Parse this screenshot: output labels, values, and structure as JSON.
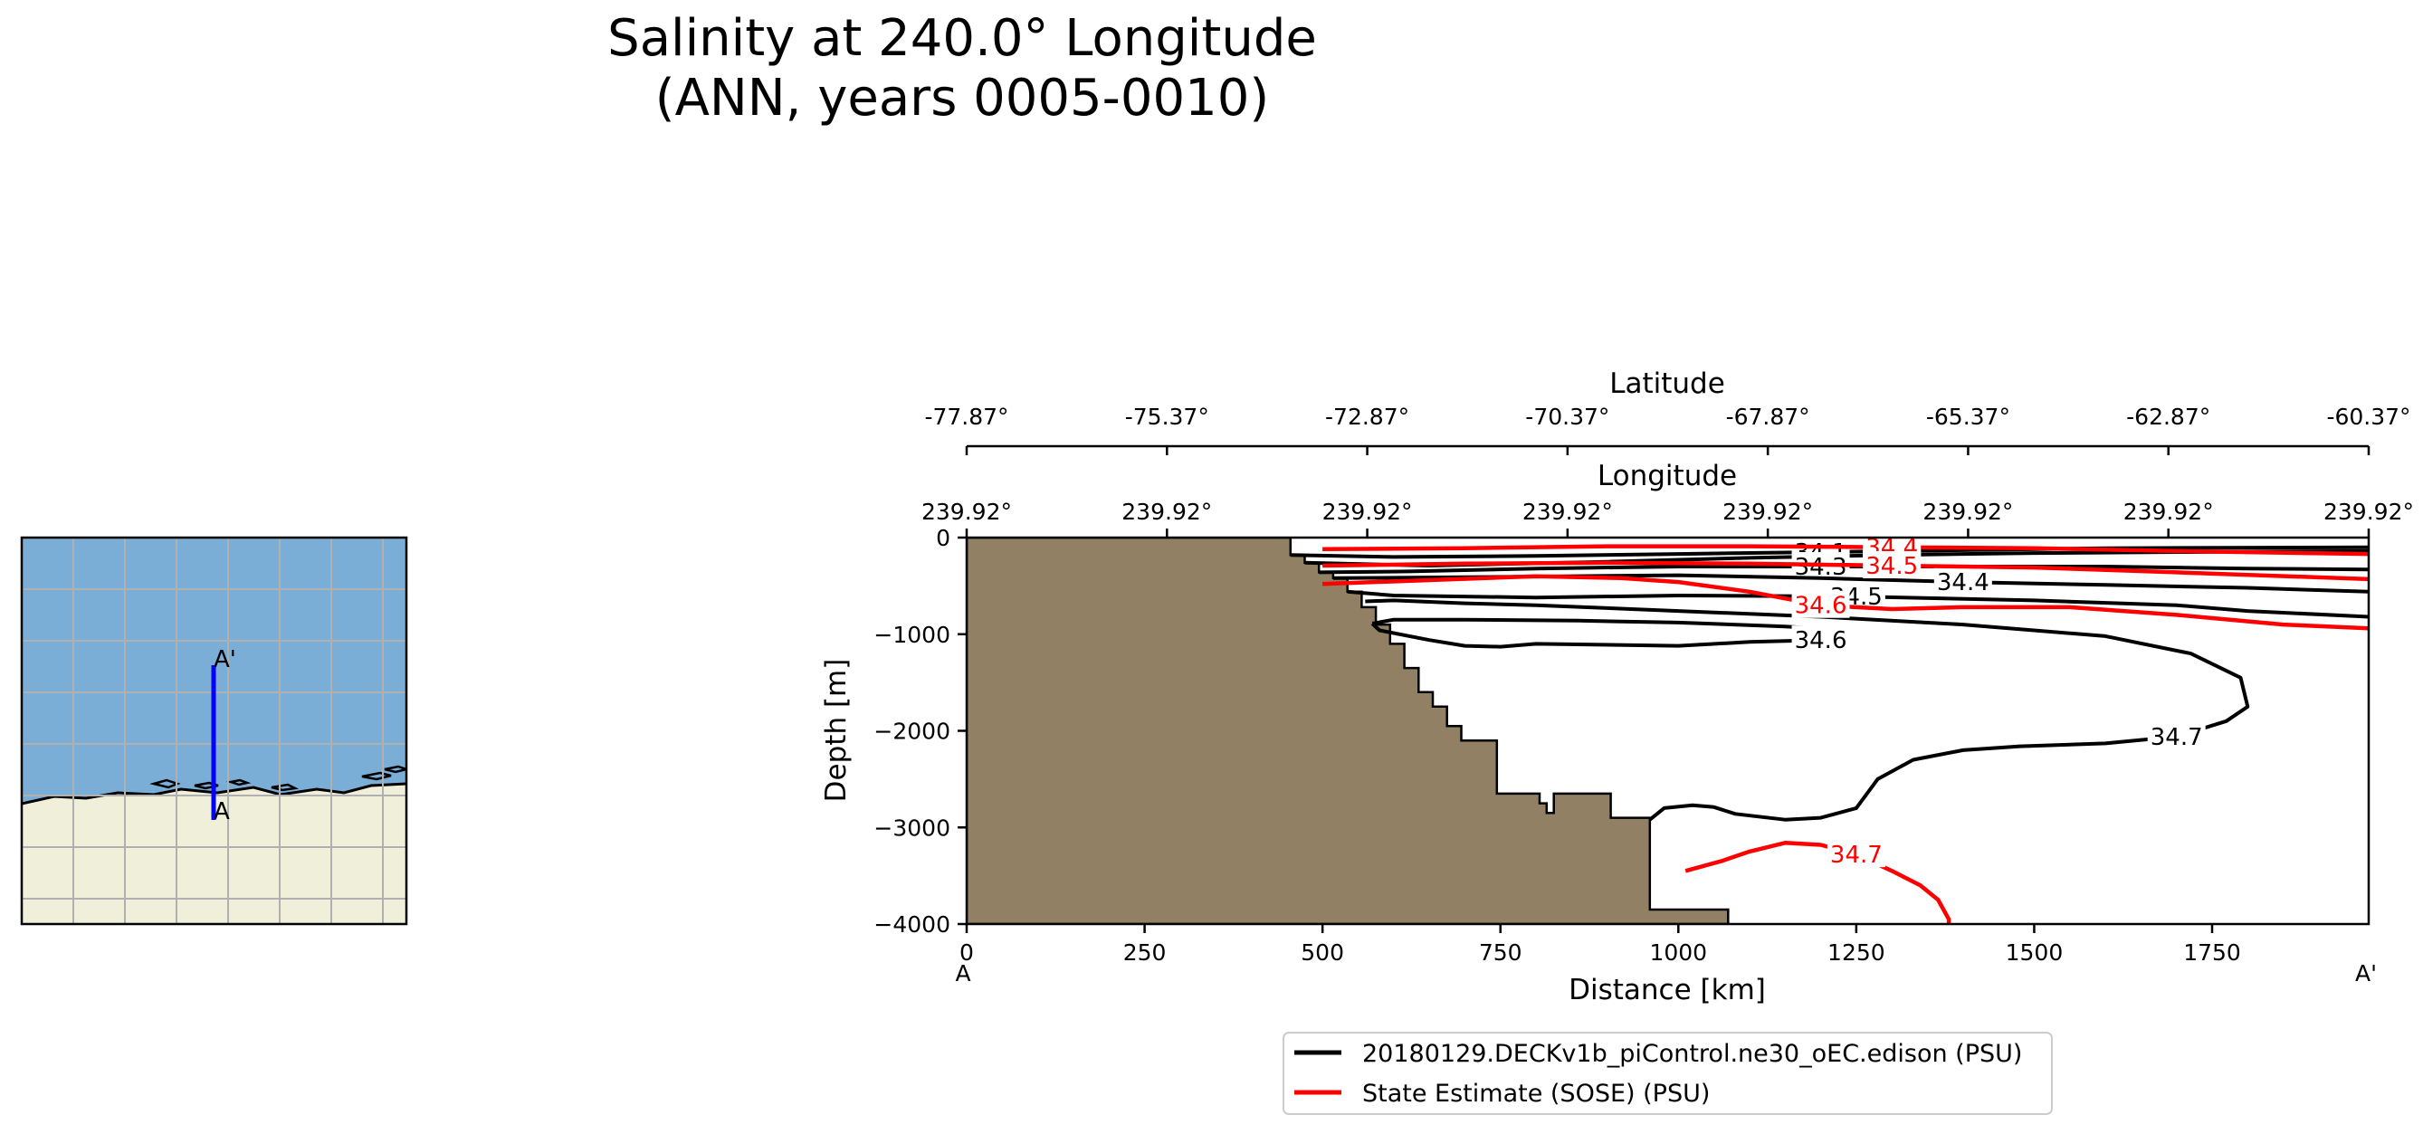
{
  "title": {
    "line1": "Salinity at 240.0° Longitude",
    "line2": "(ANN, years 0005-0010)"
  },
  "inset_map": {
    "start_label": "A",
    "end_label": "A'",
    "ocean_color": "#7aaed6",
    "land_color": "#efefda",
    "transect_color": "#0000ff"
  },
  "colors": {
    "model": "#000000",
    "obs": "#ff0000",
    "bathymetry": "#918064"
  },
  "chart_data": {
    "type": "line",
    "subtype": "vertical section with contour lines",
    "xlabel": "Distance [km]",
    "ylabel": "Depth [m]",
    "xlim": [
      0,
      1970
    ],
    "ylim": [
      -4000,
      0
    ],
    "x_ticks": [
      "0",
      "250",
      "500",
      "750",
      "1000",
      "1250",
      "1500",
      "1750"
    ],
    "y_ticks": [
      "0",
      "−1000",
      "−2000",
      "−3000",
      "−4000"
    ],
    "x_end_labels": {
      "start": "A",
      "end": "A'"
    },
    "latitude_axis": {
      "label": "Latitude",
      "ticks": [
        "-77.87°",
        "-75.37°",
        "-72.87°",
        "-70.37°",
        "-67.87°",
        "-65.37°",
        "-62.87°",
        "-60.37°"
      ]
    },
    "longitude_axis": {
      "label": "Longitude",
      "ticks": [
        "239.92°",
        "239.92°",
        "239.92°",
        "239.92°",
        "239.92°",
        "239.92°",
        "239.92°",
        "239.92°"
      ]
    },
    "legend_location": "below plot",
    "series": [
      {
        "name": "20180129.DECKv1b_piControl.ne30_oEC.edison (PSU)",
        "color": "#000000",
        "contours": [
          {
            "label": "34.1",
            "points": [
              [
                455,
                -180
              ],
              [
                600,
                -200
              ],
              [
                800,
                -190
              ],
              [
                1000,
                -170
              ],
              [
                1200,
                -150
              ],
              [
                1400,
                -130
              ],
              [
                1600,
                -110
              ],
              [
                1970,
                -100
              ]
            ]
          },
          {
            "label": "34.2",
            "points": [
              [
                475,
                -260
              ],
              [
                650,
                -290
              ],
              [
                900,
                -250
              ],
              [
                1100,
                -210
              ],
              [
                1300,
                -180
              ],
              [
                1500,
                -160
              ],
              [
                1700,
                -150
              ],
              [
                1970,
                -140
              ]
            ]
          },
          {
            "label": "34.3",
            "points": [
              [
                495,
                -360
              ],
              [
                620,
                -350
              ],
              [
                800,
                -320
              ],
              [
                1000,
                -300
              ],
              [
                1200,
                -300
              ],
              [
                1400,
                -300
              ],
              [
                1600,
                -300
              ],
              [
                1800,
                -320
              ],
              [
                1970,
                -330
              ]
            ]
          },
          {
            "label": "34.4",
            "points": [
              [
                515,
                -420
              ],
              [
                700,
                -410
              ],
              [
                1000,
                -390
              ],
              [
                1200,
                -420
              ],
              [
                1400,
                -460
              ],
              [
                1600,
                -490
              ],
              [
                1800,
                -520
              ],
              [
                1970,
                -560
              ]
            ]
          },
          {
            "label": "34.5",
            "points": [
              [
                535,
                -560
              ],
              [
                600,
                -600
              ],
              [
                800,
                -620
              ],
              [
                1000,
                -600
              ],
              [
                1250,
                -610
              ],
              [
                1500,
                -650
              ],
              [
                1700,
                -700
              ],
              [
                1800,
                -760
              ],
              [
                1970,
                -820
              ]
            ]
          },
          {
            "label": "34.6",
            "points": [
              [
                570,
                -890
              ],
              [
                580,
                -960
              ],
              [
                650,
                -1060
              ],
              [
                700,
                -1120
              ],
              [
                750,
                -1130
              ],
              [
                800,
                -1100
              ],
              [
                1000,
                -1120
              ],
              [
                1100,
                -1080
              ],
              [
                1200,
                -1060
              ],
              [
                1230,
                -1000
              ],
              [
                1220,
                -950
              ],
              [
                1150,
                -920
              ],
              [
                1000,
                -880
              ],
              [
                860,
                -860
              ],
              [
                700,
                -850
              ],
              [
                600,
                -850
              ],
              [
                570,
                -890
              ]
            ]
          },
          {
            "label": "34.7",
            "points": [
              [
                960,
                -2920
              ],
              [
                980,
                -2800
              ],
              [
                1020,
                -2770
              ],
              [
                1050,
                -2790
              ],
              [
                1080,
                -2860
              ],
              [
                1150,
                -2920
              ],
              [
                1200,
                -2900
              ],
              [
                1250,
                -2800
              ],
              [
                1280,
                -2500
              ],
              [
                1330,
                -2300
              ],
              [
                1400,
                -2200
              ],
              [
                1480,
                -2160
              ],
              [
                1600,
                -2130
              ],
              [
                1700,
                -2060
              ],
              [
                1770,
                -1900
              ],
              [
                1800,
                -1750
              ],
              [
                1790,
                -1450
              ],
              [
                1720,
                -1200
              ],
              [
                1600,
                -1020
              ],
              [
                1400,
                -900
              ],
              [
                1200,
                -820
              ],
              [
                1000,
                -760
              ],
              [
                800,
                -700
              ],
              [
                700,
                -680
              ],
              [
                600,
                -650
              ],
              [
                560,
                -660
              ]
            ]
          }
        ]
      },
      {
        "name": "State Estimate (SOSE) (PSU)",
        "color": "#ff0000",
        "contours": [
          {
            "label": "34.4",
            "points": [
              [
                500,
                -120
              ],
              [
                700,
                -110
              ],
              [
                900,
                -90
              ],
              [
                1100,
                -90
              ],
              [
                1300,
                -100
              ],
              [
                1500,
                -110
              ],
              [
                1700,
                -140
              ],
              [
                1970,
                -170
              ]
            ]
          },
          {
            "label": "34.5",
            "points": [
              [
                500,
                -290
              ],
              [
                700,
                -270
              ],
              [
                900,
                -260
              ],
              [
                1100,
                -270
              ],
              [
                1300,
                -290
              ],
              [
                1500,
                -310
              ],
              [
                1700,
                -360
              ],
              [
                1970,
                -430
              ]
            ]
          },
          {
            "label": "34.6",
            "points": [
              [
                500,
                -480
              ],
              [
                650,
                -440
              ],
              [
                800,
                -400
              ],
              [
                920,
                -420
              ],
              [
                1000,
                -460
              ],
              [
                1100,
                -560
              ],
              [
                1200,
                -700
              ],
              [
                1300,
                -740
              ],
              [
                1400,
                -720
              ],
              [
                1550,
                -720
              ],
              [
                1700,
                -800
              ],
              [
                1850,
                -900
              ],
              [
                1970,
                -940
              ]
            ]
          },
          {
            "label": "34.7",
            "points": [
              [
                1010,
                -3450
              ],
              [
                1060,
                -3350
              ],
              [
                1100,
                -3250
              ],
              [
                1150,
                -3160
              ],
              [
                1200,
                -3180
              ],
              [
                1250,
                -3280
              ],
              [
                1300,
                -3450
              ],
              [
                1340,
                -3600
              ],
              [
                1365,
                -3750
              ],
              [
                1380,
                -3950
              ],
              [
                1380,
                -4000
              ]
            ]
          }
        ]
      }
    ],
    "bathymetry": [
      [
        0,
        0
      ],
      [
        455,
        0
      ],
      [
        455,
        -180
      ],
      [
        475,
        -180
      ],
      [
        475,
        -260
      ],
      [
        495,
        -260
      ],
      [
        495,
        -360
      ],
      [
        515,
        -360
      ],
      [
        515,
        -420
      ],
      [
        535,
        -420
      ],
      [
        535,
        -560
      ],
      [
        555,
        -560
      ],
      [
        555,
        -720
      ],
      [
        575,
        -720
      ],
      [
        575,
        -900
      ],
      [
        595,
        -900
      ],
      [
        595,
        -1100
      ],
      [
        615,
        -1100
      ],
      [
        615,
        -1350
      ],
      [
        635,
        -1350
      ],
      [
        635,
        -1600
      ],
      [
        655,
        -1600
      ],
      [
        655,
        -1750
      ],
      [
        675,
        -1750
      ],
      [
        675,
        -1950
      ],
      [
        695,
        -1950
      ],
      [
        695,
        -2100
      ],
      [
        745,
        -2100
      ],
      [
        745,
        -2650
      ],
      [
        805,
        -2650
      ],
      [
        805,
        -2750
      ],
      [
        815,
        -2750
      ],
      [
        815,
        -2850
      ],
      [
        825,
        -2850
      ],
      [
        825,
        -2650
      ],
      [
        905,
        -2650
      ],
      [
        905,
        -2900
      ],
      [
        960,
        -2900
      ],
      [
        960,
        -3850
      ],
      [
        1070,
        -3850
      ],
      [
        1070,
        -4000
      ],
      [
        0,
        -4000
      ]
    ]
  }
}
